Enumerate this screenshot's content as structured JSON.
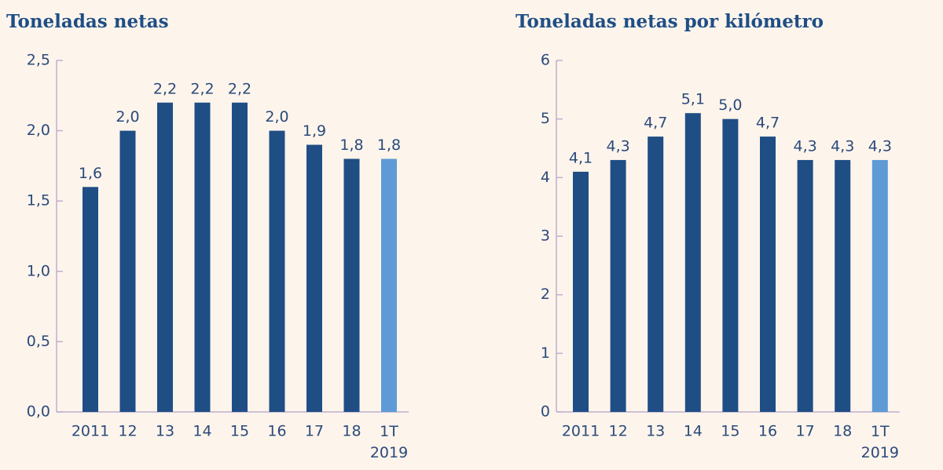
{
  "chart_data": [
    {
      "type": "bar",
      "title": "Toneladas netas",
      "categories": [
        "2011",
        "12",
        "13",
        "14",
        "15",
        "16",
        "17",
        "18",
        "1T 2019"
      ],
      "values": [
        1.6,
        2.0,
        2.2,
        2.2,
        2.2,
        2.0,
        1.9,
        1.8,
        1.8
      ],
      "value_labels": [
        "1,6",
        "2,0",
        "2,2",
        "2,2",
        "2,2",
        "2,0",
        "1,9",
        "1,8",
        "1,8"
      ],
      "colors": [
        "#1f4e85",
        "#1f4e85",
        "#1f4e85",
        "#1f4e85",
        "#1f4e85",
        "#1f4e85",
        "#1f4e85",
        "#1f4e85",
        "#5e9ad6"
      ],
      "ylim": [
        0,
        2.5
      ],
      "yticks": [
        {
          "value": 0,
          "label": "0,0"
        },
        {
          "value": 0.5,
          "label": "0,5"
        },
        {
          "value": 1,
          "label": "1,0"
        },
        {
          "value": 1.5,
          "label": "1,5"
        },
        {
          "value": 2,
          "label": "2,0"
        },
        {
          "value": 2.5,
          "label": "2,5"
        }
      ]
    },
    {
      "type": "bar",
      "title": "Toneladas netas por kilómetro",
      "categories": [
        "2011",
        "12",
        "13",
        "14",
        "15",
        "16",
        "17",
        "18",
        "1T 2019"
      ],
      "values": [
        4.1,
        4.3,
        4.7,
        5.1,
        5.0,
        4.7,
        4.3,
        4.3,
        4.3
      ],
      "value_labels": [
        "4,1",
        "4,3",
        "4,7",
        "5,1",
        "5,0",
        "4,7",
        "4,3",
        "4,3",
        "4,3"
      ],
      "colors": [
        "#1f4e85",
        "#1f4e85",
        "#1f4e85",
        "#1f4e85",
        "#1f4e85",
        "#1f4e85",
        "#1f4e85",
        "#1f4e85",
        "#5e9ad6"
      ],
      "ylim": [
        0,
        6
      ],
      "yticks": [
        0,
        1,
        2,
        3,
        4,
        5,
        6
      ]
    }
  ]
}
